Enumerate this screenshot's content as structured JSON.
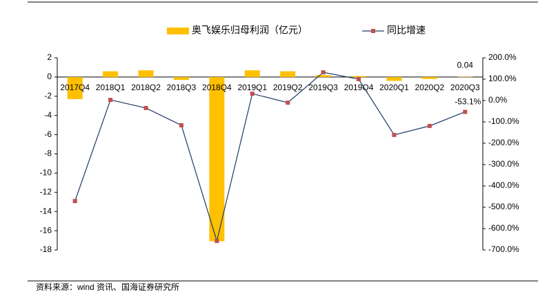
{
  "chart_data": {
    "type": "bar_line",
    "categories": [
      "2017Q4",
      "2018Q1",
      "2018Q2",
      "2018Q3",
      "2018Q4",
      "2019Q1",
      "2019Q2",
      "2019Q3",
      "2019Q4",
      "2020Q1",
      "2020Q2",
      "2020Q3"
    ],
    "series": [
      {
        "name": "奥飞娱乐归母利润（亿元）",
        "type": "bar",
        "color": "#FFC000",
        "values": [
          -2.3,
          0.6,
          0.7,
          -0.3,
          -17.1,
          0.7,
          0.6,
          0.2,
          0.1,
          -0.4,
          -0.2,
          0.04
        ],
        "value_labels": [
          null,
          null,
          null,
          null,
          null,
          null,
          null,
          null,
          null,
          null,
          null,
          "0.04"
        ]
      },
      {
        "name": "同比增速",
        "type": "line",
        "axis": "y2",
        "color": "#1F3864",
        "marker_color": "#C0504D",
        "values": [
          -471,
          3,
          -35,
          -116,
          -658,
          32,
          -10,
          132,
          100,
          -161,
          -119,
          -53.1
        ],
        "value_labels": [
          null,
          null,
          null,
          null,
          null,
          null,
          null,
          null,
          null,
          null,
          null,
          "-53.1%"
        ]
      }
    ],
    "ylim": [
      -18,
      2
    ],
    "yticks": [
      2,
      0,
      -2,
      -4,
      -6,
      -8,
      -10,
      -12,
      -14,
      -16,
      -18
    ],
    "y2lim": [
      -700,
      200
    ],
    "y2ticks": [
      {
        "value": 200,
        "label": "200.0%"
      },
      {
        "value": 100,
        "label": "100.0%"
      },
      {
        "value": 0,
        "label": "0.0%"
      },
      {
        "value": -100,
        "label": "-100.0%"
      },
      {
        "value": -200,
        "label": "-200.0%"
      },
      {
        "value": -300,
        "label": "-300.0%"
      },
      {
        "value": -400,
        "label": "-400.0%"
      },
      {
        "value": -500,
        "label": "-500.0%"
      },
      {
        "value": -600,
        "label": "-600.0%"
      },
      {
        "value": -700,
        "label": "-700.0%"
      }
    ],
    "grid": false,
    "source": "资料来源：wind 资讯、国海证券研究所"
  }
}
